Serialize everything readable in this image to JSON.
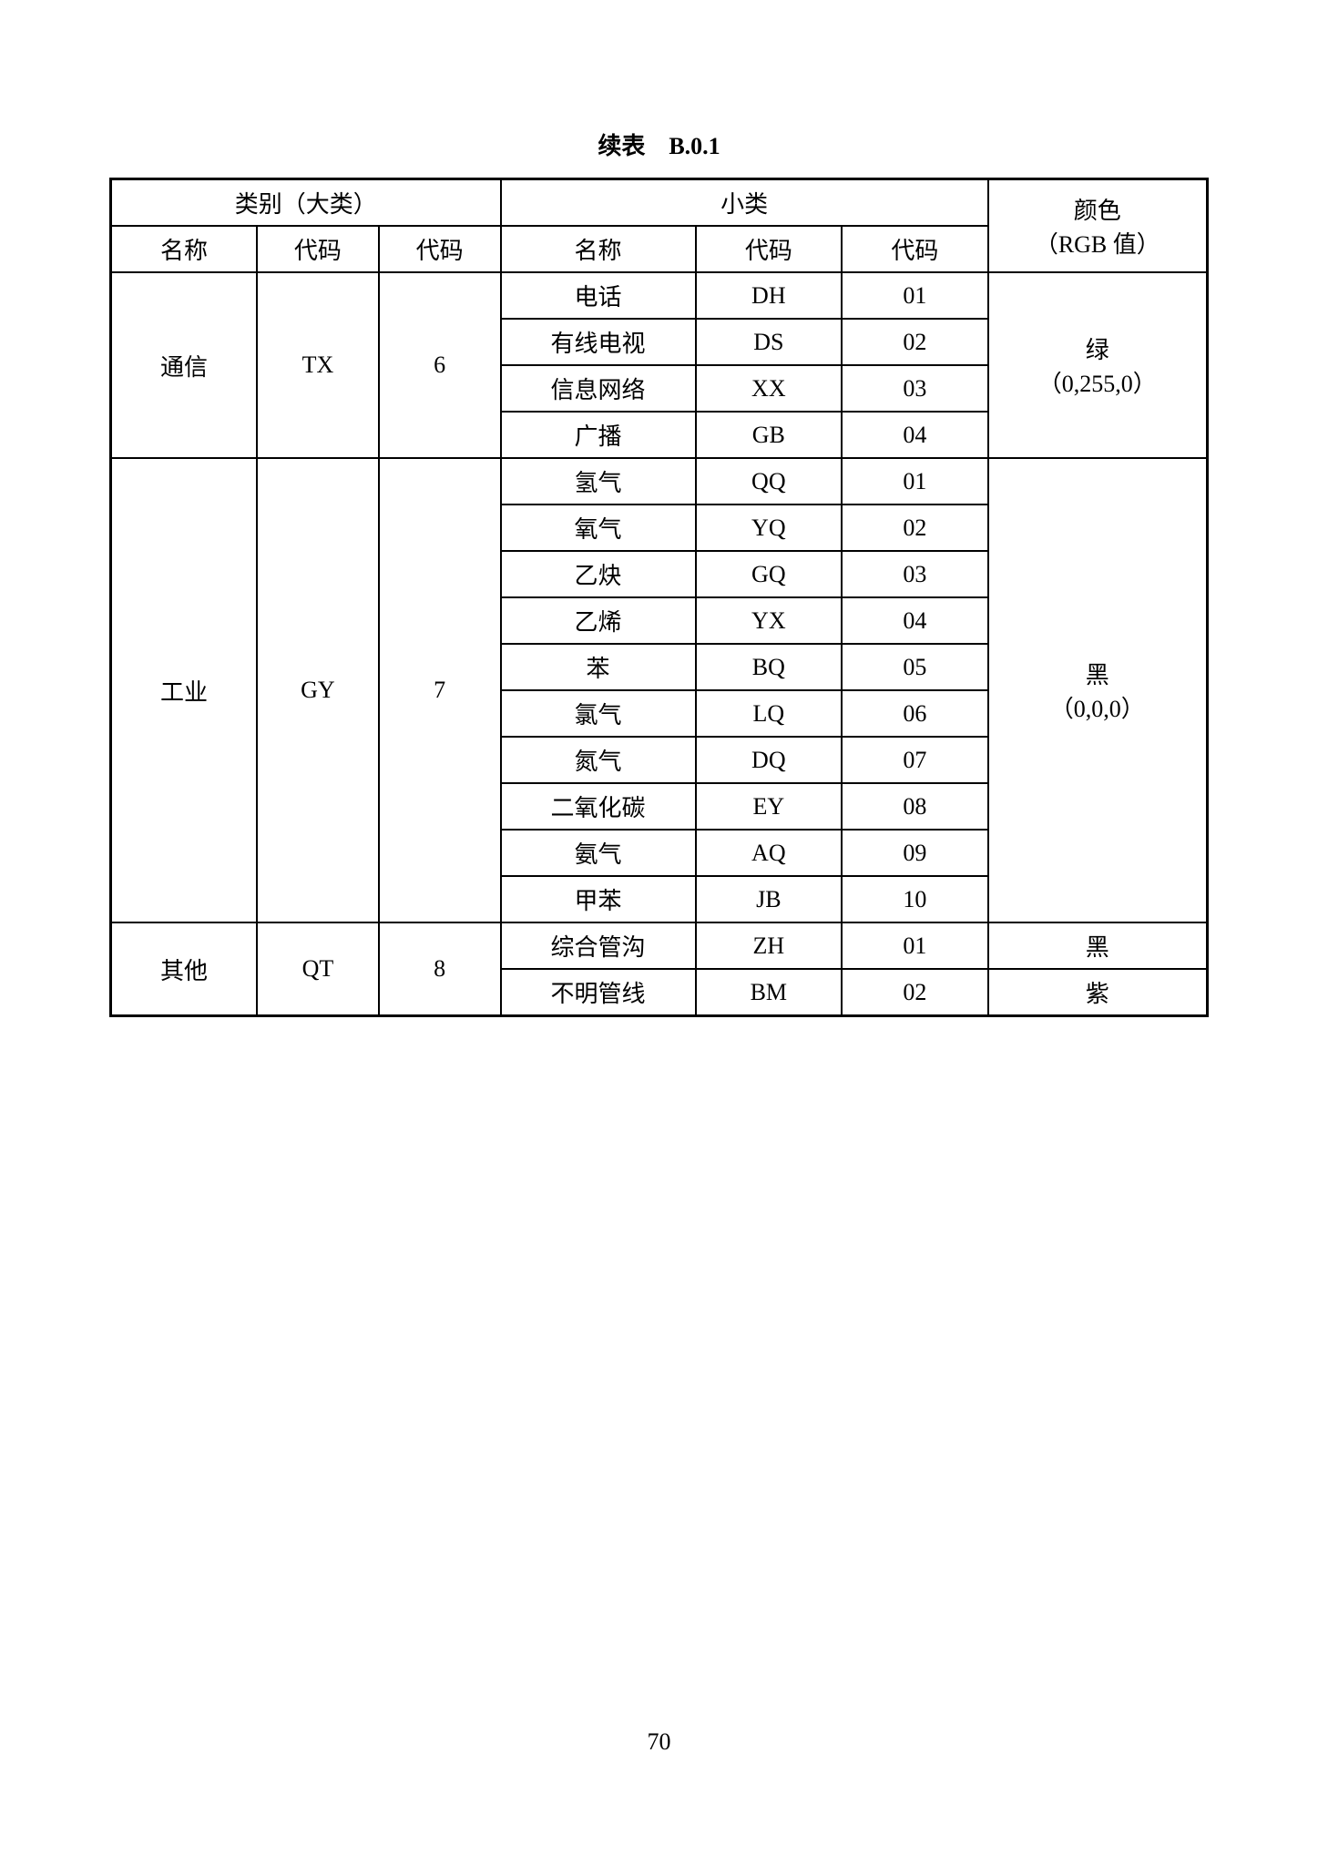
{
  "caption": "续表　B.0.1",
  "page_number": "70",
  "header": {
    "major_category": "类别（大类）",
    "minor_category": "小类",
    "color_label": "颜色",
    "color_sub": "（RGB 值）",
    "name": "名称",
    "code_alpha": "代码",
    "code_num": "代码"
  },
  "groups": [
    {
      "major_name": "通信",
      "major_alpha": "TX",
      "major_num": "6",
      "color_name": "绿",
      "color_rgb": "（0,255,0）",
      "rows": [
        {
          "name": "电话",
          "alpha": "DH",
          "num": "01"
        },
        {
          "name": "有线电视",
          "alpha": "DS",
          "num": "02"
        },
        {
          "name": "信息网络",
          "alpha": "XX",
          "num": "03"
        },
        {
          "name": "广播",
          "alpha": "GB",
          "num": "04"
        }
      ]
    },
    {
      "major_name": "工业",
      "major_alpha": "GY",
      "major_num": "7",
      "color_name": "黑",
      "color_rgb": "（0,0,0）",
      "rows": [
        {
          "name": "氢气",
          "alpha": "QQ",
          "num": "01"
        },
        {
          "name": "氧气",
          "alpha": "YQ",
          "num": "02"
        },
        {
          "name": "乙炔",
          "alpha": "GQ",
          "num": "03"
        },
        {
          "name": "乙烯",
          "alpha": "YX",
          "num": "04"
        },
        {
          "name": "苯",
          "alpha": "BQ",
          "num": "05"
        },
        {
          "name": "氯气",
          "alpha": "LQ",
          "num": "06"
        },
        {
          "name": "氮气",
          "alpha": "DQ",
          "num": "07"
        },
        {
          "name": "二氧化碳",
          "alpha": "EY",
          "num": "08"
        },
        {
          "name": "氨气",
          "alpha": "AQ",
          "num": "09"
        },
        {
          "name": "甲苯",
          "alpha": "JB",
          "num": "10"
        }
      ]
    },
    {
      "major_name": "其他",
      "major_alpha": "QT",
      "major_num": "8",
      "rows": [
        {
          "name": "综合管沟",
          "alpha": "ZH",
          "num": "01",
          "row_color": "黑"
        },
        {
          "name": "不明管线",
          "alpha": "BM",
          "num": "02",
          "row_color": "紫"
        }
      ]
    }
  ]
}
